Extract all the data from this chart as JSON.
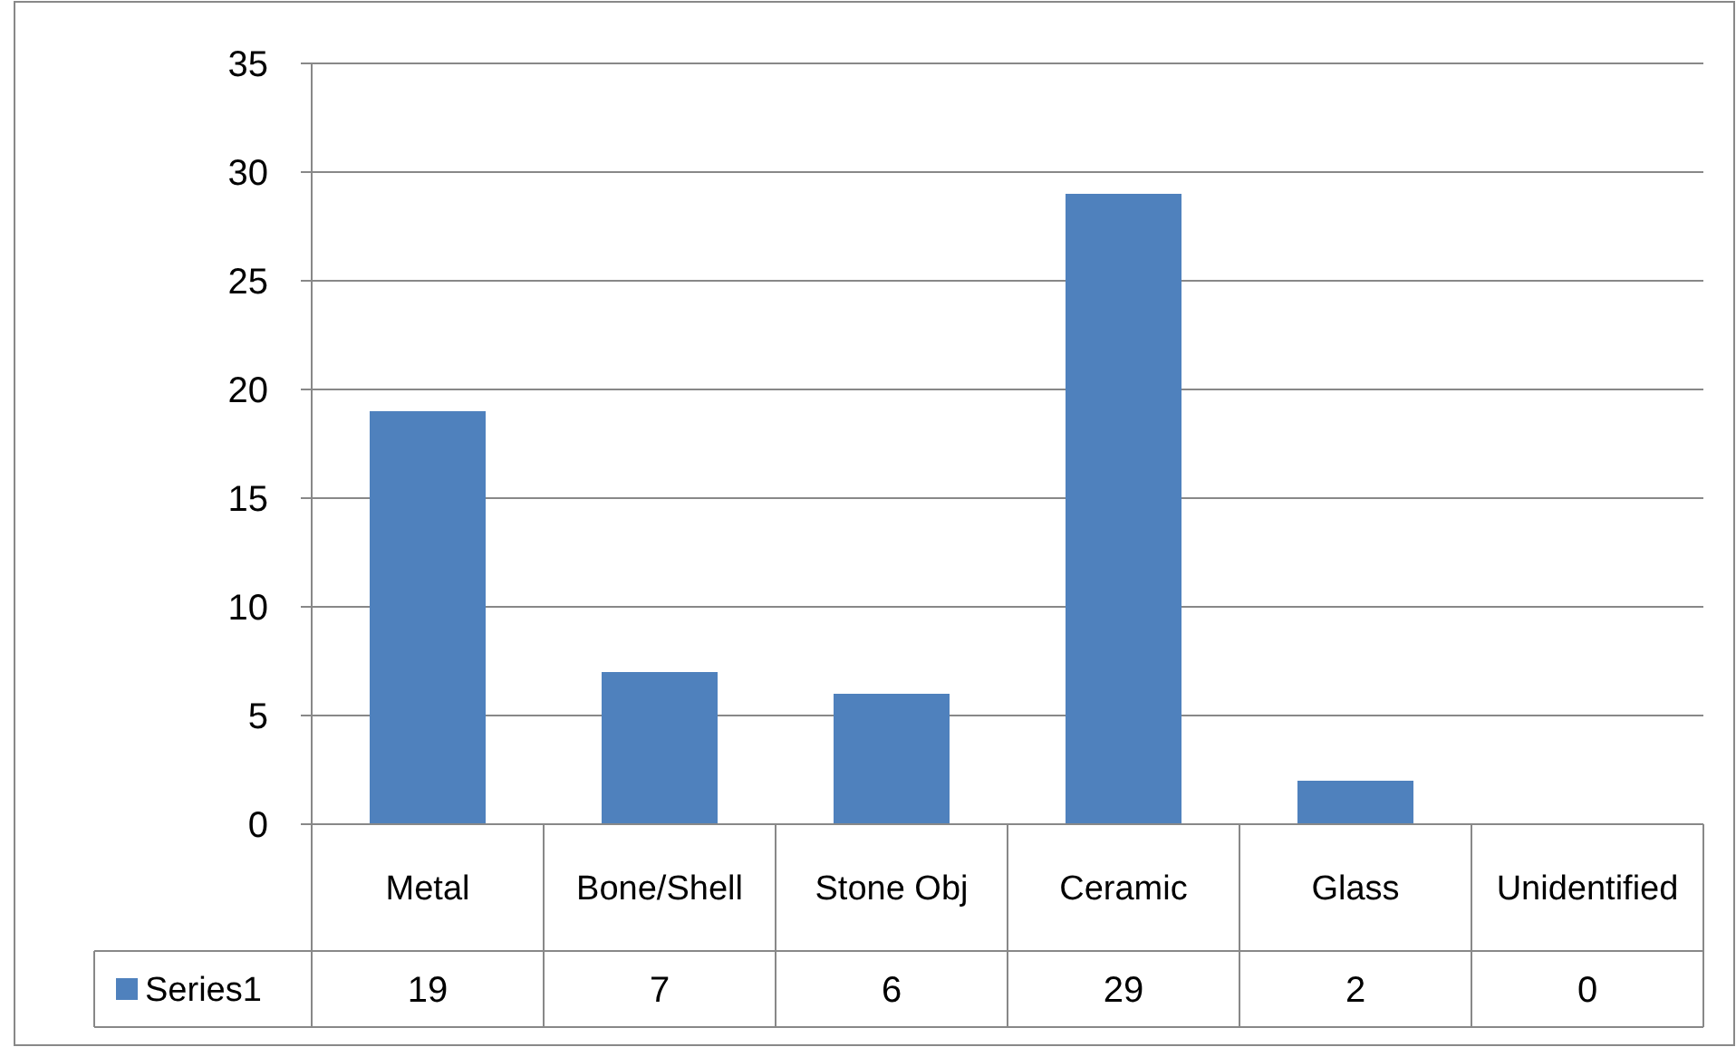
{
  "chart_data": {
    "type": "bar",
    "categories": [
      "Metal",
      "Bone/Shell",
      "Stone Obj",
      "Ceramic",
      "Glass",
      "Unidentified"
    ],
    "series": [
      {
        "name": "Series1",
        "color": "#4f81bd",
        "values": [
          19,
          7,
          6,
          29,
          2,
          0
        ]
      }
    ],
    "ylim": [
      0,
      35
    ],
    "yticks": [
      0,
      5,
      10,
      15,
      20,
      25,
      30,
      35
    ],
    "grid": "y",
    "data_labels": true,
    "legend": "bottom"
  }
}
